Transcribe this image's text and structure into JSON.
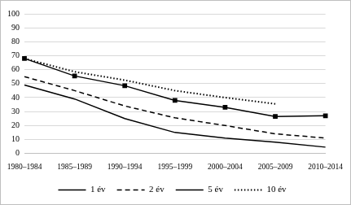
{
  "chart_data": {
    "type": "line",
    "categories": [
      "1980–1984",
      "1985–1989",
      "1990–1994",
      "1995–1999",
      "2000–2004",
      "2005–2009",
      "2010–2014"
    ],
    "series": [
      {
        "name": "1 év",
        "color": "#000000",
        "line_style": "solid",
        "marker": "none",
        "values": [
          49,
          39,
          25,
          15,
          11,
          8,
          4.5
        ]
      },
      {
        "name": "2 év",
        "color": "#000000",
        "line_style": "dashed",
        "marker": "none",
        "values": [
          55,
          45,
          34,
          25.5,
          20,
          14,
          11
        ]
      },
      {
        "name": "5 év",
        "color": "#000000",
        "line_style": "solid",
        "marker": "square",
        "values": [
          68,
          55.5,
          48.5,
          38,
          33,
          26.5,
          27
        ]
      },
      {
        "name": "10 év",
        "color": "#000000",
        "line_style": "dotted",
        "marker": "none",
        "values": [
          68,
          58.5,
          52.5,
          45,
          40,
          35.5,
          null
        ]
      }
    ],
    "ylim": [
      0,
      100
    ],
    "yticks": [
      0,
      10,
      20,
      30,
      40,
      50,
      60,
      70,
      80,
      90,
      100
    ],
    "grid": true,
    "legend": "bottom"
  }
}
